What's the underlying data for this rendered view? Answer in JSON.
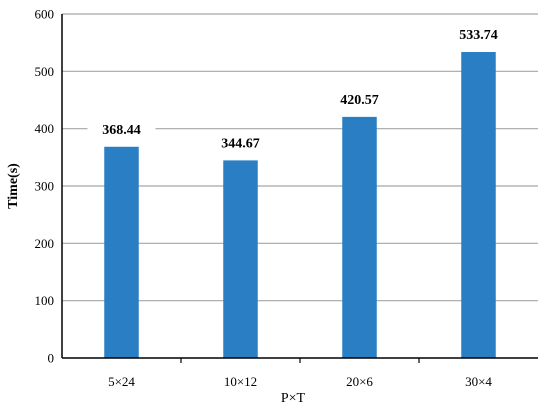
{
  "chart_data": {
    "type": "bar",
    "title": "",
    "xlabel": "P×T",
    "ylabel": "Time(s)",
    "categories": [
      "5×24",
      "10×12",
      "20×6",
      "30×4"
    ],
    "values": [
      368.44,
      344.67,
      420.57,
      533.74
    ],
    "value_labels": [
      "368.44",
      "344.67",
      "420.57",
      "533.74"
    ],
    "ylim": [
      0,
      600
    ],
    "yticks": [
      0,
      100,
      200,
      300,
      400,
      500,
      600
    ],
    "grid": true,
    "legend": "none",
    "colors": {
      "bar": "#2a7fc4",
      "grid": "#a6a6a6",
      "axis": "#000000"
    }
  }
}
